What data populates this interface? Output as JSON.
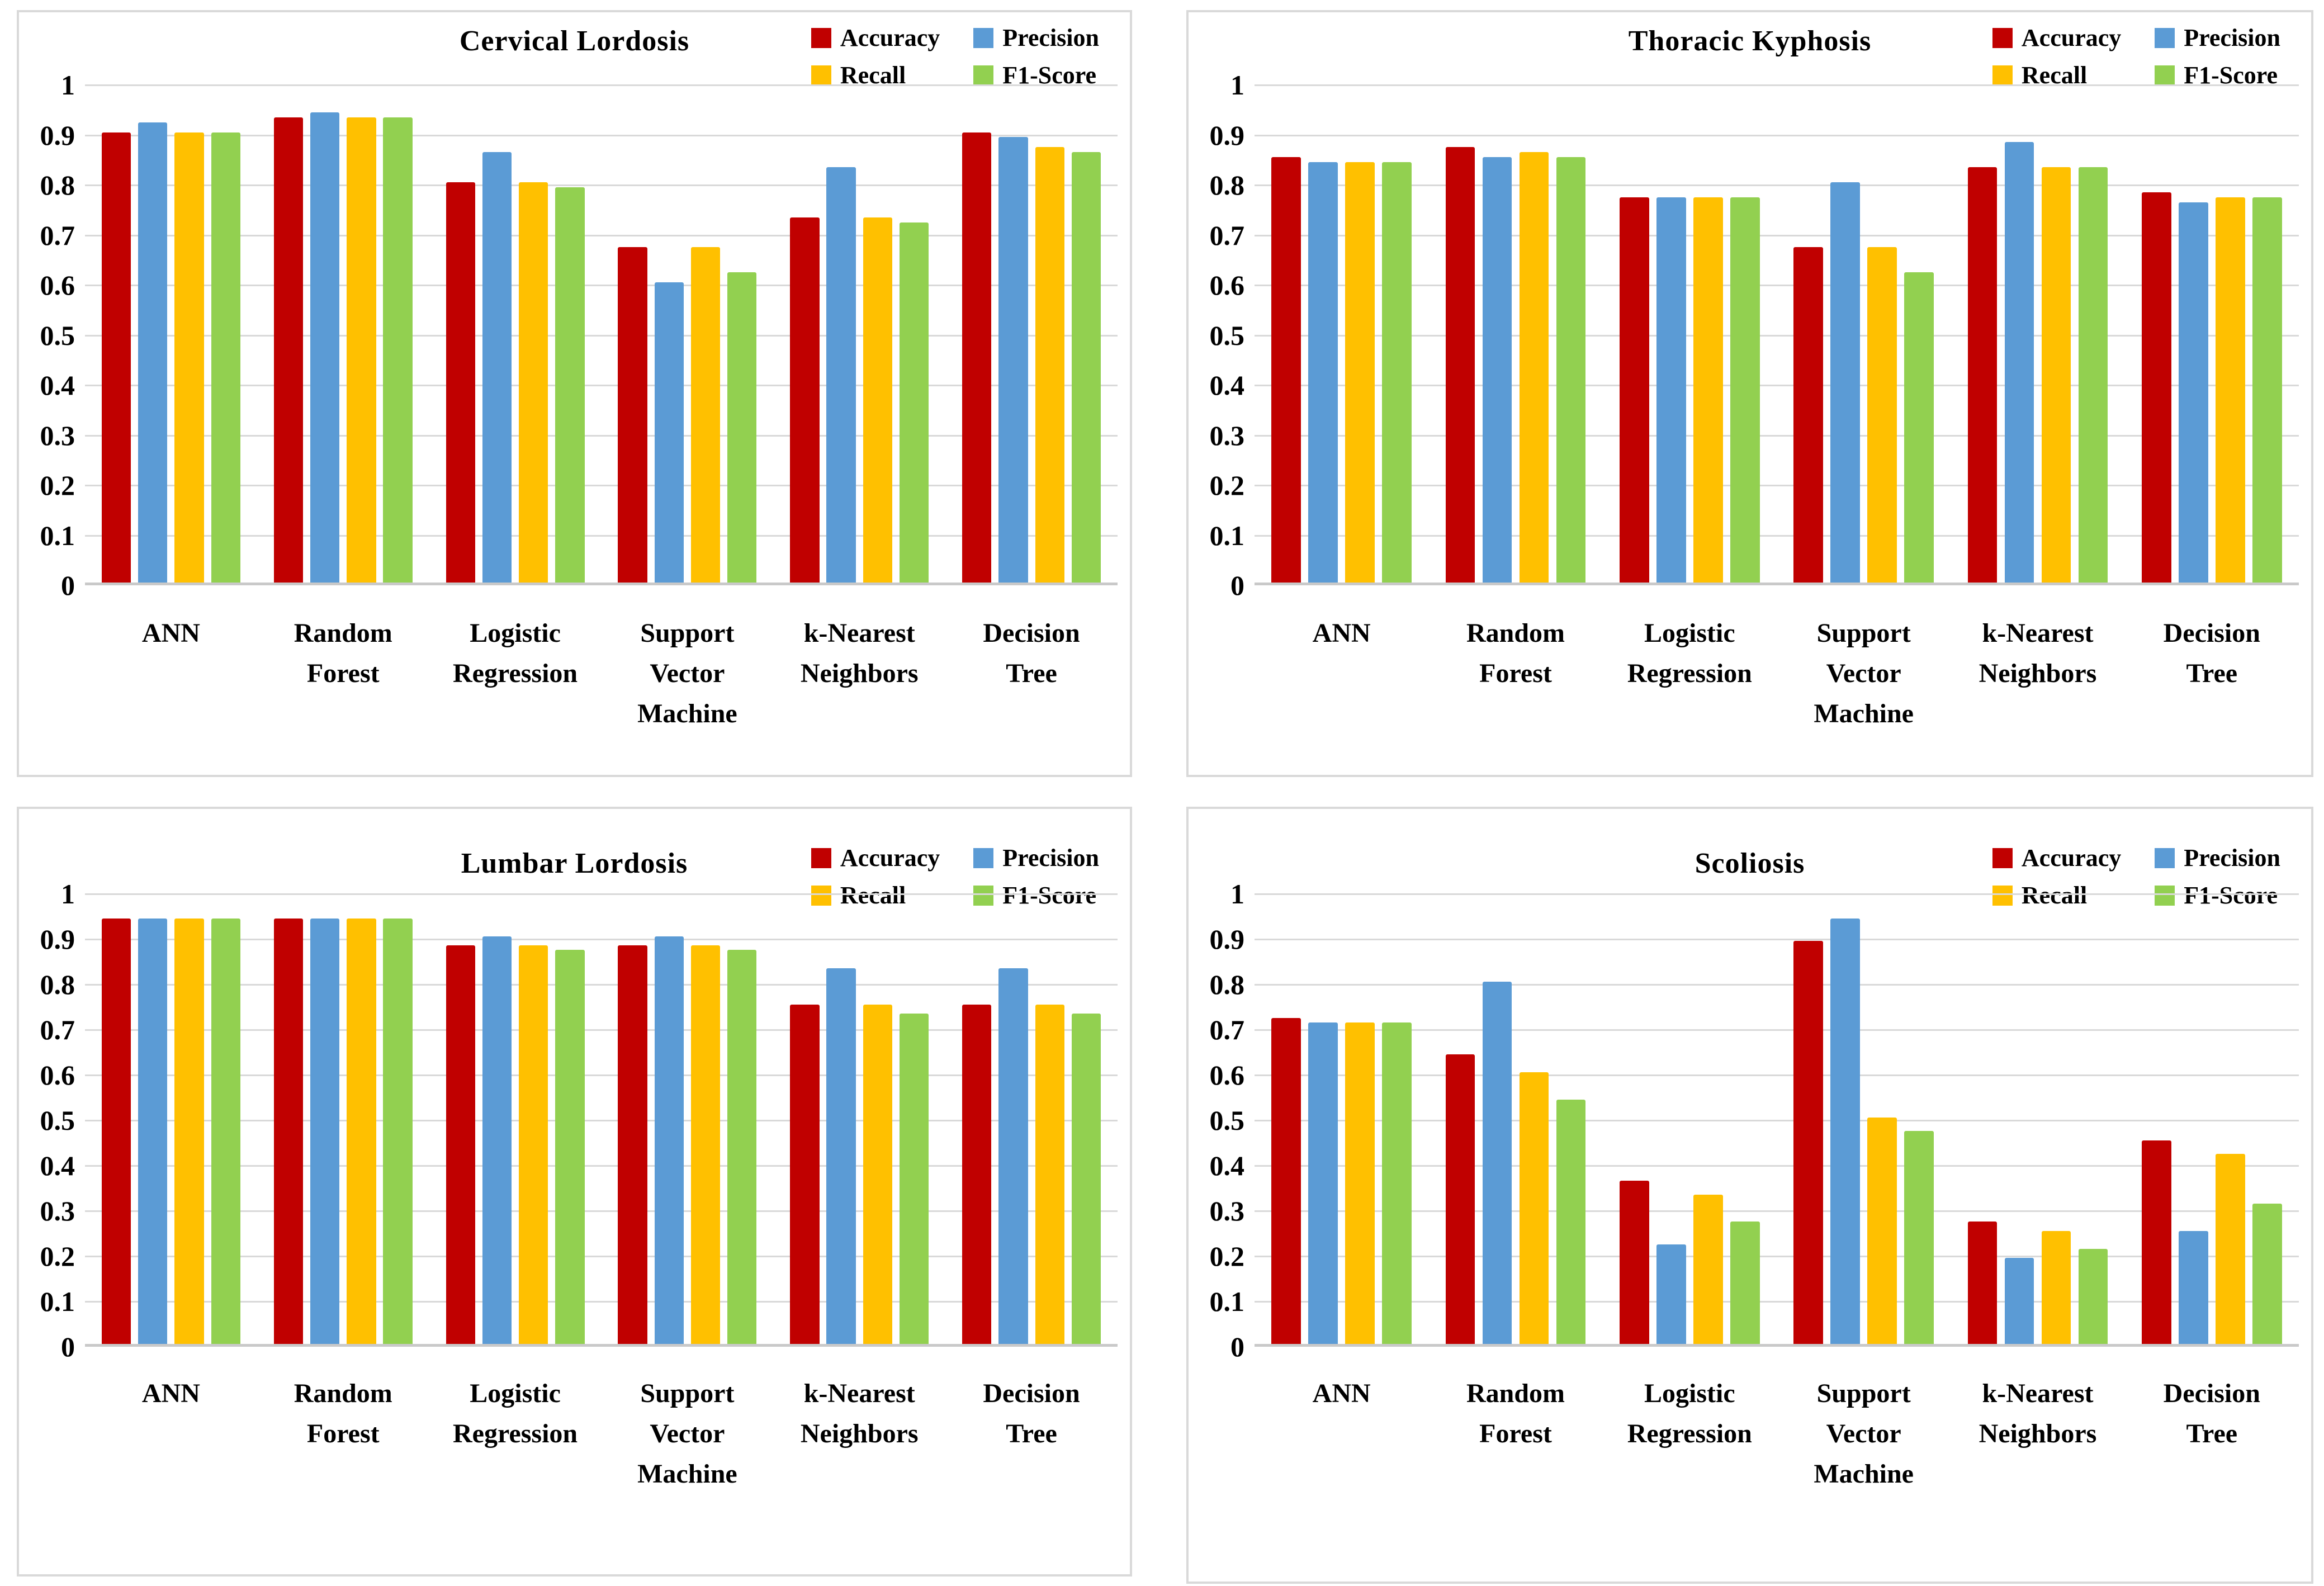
{
  "page": {
    "background": "#ffffff",
    "layout": "2x2-grid-of-bar-charts"
  },
  "colors": {
    "accuracy": "#C00000",
    "precision": "#5B9BD5",
    "recall": "#FFC000",
    "f1_score": "#92D050",
    "gridline": "#D9D9D9",
    "axis_line": "#C9C9C9",
    "panel_border": "#D9D9D9",
    "text": "#000000"
  },
  "legend": {
    "items": [
      {
        "label": "Accuracy",
        "color": "#C00000"
      },
      {
        "label": "Precision",
        "color": "#5B9BD5"
      },
      {
        "label": "Recall",
        "color": "#FFC000"
      },
      {
        "label": "F1-Score",
        "color": "#92D050"
      }
    ]
  },
  "y_axis": {
    "min": 0,
    "max": 1,
    "step": 0.1,
    "ticks": [
      "1",
      "0.9",
      "0.8",
      "0.7",
      "0.6",
      "0.5",
      "0.4",
      "0.3",
      "0.2",
      "0.1",
      "0"
    ]
  },
  "categories_lines": [
    [
      "ANN"
    ],
    [
      "Random",
      "Forest"
    ],
    [
      "Logistic",
      "Regression"
    ],
    [
      "Support",
      "Vector",
      "Machine"
    ],
    [
      "k-Nearest",
      "Neighbors"
    ],
    [
      "Decision",
      "Tree"
    ]
  ],
  "chart_data": [
    {
      "type": "bar",
      "title": "Cervical Lordosis",
      "panel": "top-left",
      "categories": [
        "ANN",
        "Random Forest",
        "Logistic Regression",
        "Support Vector Machine",
        "k-Nearest Neighbors",
        "Decision Tree"
      ],
      "series": [
        {
          "name": "Accuracy",
          "values": [
            0.9,
            0.93,
            0.8,
            0.67,
            0.73,
            0.9
          ]
        },
        {
          "name": "Precision",
          "values": [
            0.92,
            0.94,
            0.86,
            0.6,
            0.83,
            0.89
          ]
        },
        {
          "name": "Recall",
          "values": [
            0.9,
            0.93,
            0.8,
            0.67,
            0.73,
            0.87
          ]
        },
        {
          "name": "F1-Score",
          "values": [
            0.9,
            0.93,
            0.79,
            0.62,
            0.72,
            0.86
          ]
        }
      ],
      "xlabel": "",
      "ylabel": "",
      "ylim": [
        0,
        1
      ],
      "grid": true,
      "legend_position": "top-right"
    },
    {
      "type": "bar",
      "title": "Thoracic Kyphosis",
      "panel": "top-right",
      "categories": [
        "ANN",
        "Random Forest",
        "Logistic Regression",
        "Support Vector Machine",
        "k-Nearest Neighbors",
        "Decision Tree"
      ],
      "series": [
        {
          "name": "Accuracy",
          "values": [
            0.85,
            0.87,
            0.77,
            0.67,
            0.83,
            0.78
          ]
        },
        {
          "name": "Precision",
          "values": [
            0.84,
            0.85,
            0.77,
            0.8,
            0.88,
            0.76
          ]
        },
        {
          "name": "Recall",
          "values": [
            0.84,
            0.86,
            0.77,
            0.67,
            0.83,
            0.77
          ]
        },
        {
          "name": "F1-Score",
          "values": [
            0.84,
            0.85,
            0.77,
            0.62,
            0.83,
            0.77
          ]
        }
      ],
      "xlabel": "",
      "ylabel": "",
      "ylim": [
        0,
        1
      ],
      "grid": true,
      "legend_position": "top-right"
    },
    {
      "type": "bar",
      "title": "Lumbar Lordosis",
      "panel": "bottom-left",
      "categories": [
        "ANN",
        "Random Forest",
        "Logistic Regression",
        "Support Vector Machine",
        "k-Nearest Neighbors",
        "Decision Tree"
      ],
      "series": [
        {
          "name": "Accuracy",
          "values": [
            0.94,
            0.94,
            0.88,
            0.88,
            0.75,
            0.75
          ]
        },
        {
          "name": "Precision",
          "values": [
            0.94,
            0.94,
            0.9,
            0.9,
            0.83,
            0.83
          ]
        },
        {
          "name": "Recall",
          "values": [
            0.94,
            0.94,
            0.88,
            0.88,
            0.75,
            0.75
          ]
        },
        {
          "name": "F1-Score",
          "values": [
            0.94,
            0.94,
            0.87,
            0.87,
            0.73,
            0.73
          ]
        }
      ],
      "xlabel": "",
      "ylabel": "",
      "ylim": [
        0,
        1
      ],
      "grid": true,
      "legend_position": "top-right"
    },
    {
      "type": "bar",
      "title": "Scoliosis",
      "panel": "bottom-right",
      "categories": [
        "ANN",
        "Random Forest",
        "Logistic Regression",
        "Support Vector Machine",
        "k-Nearest Neighbors",
        "Decision Tree"
      ],
      "series": [
        {
          "name": "Accuracy",
          "values": [
            0.72,
            0.64,
            0.36,
            0.89,
            0.27,
            0.45
          ]
        },
        {
          "name": "Precision",
          "values": [
            0.71,
            0.8,
            0.22,
            0.94,
            0.19,
            0.25
          ]
        },
        {
          "name": "Recall",
          "values": [
            0.71,
            0.6,
            0.33,
            0.5,
            0.25,
            0.42
          ]
        },
        {
          "name": "F1-Score",
          "values": [
            0.71,
            0.54,
            0.27,
            0.47,
            0.21,
            0.31
          ]
        }
      ],
      "xlabel": "",
      "ylabel": "",
      "ylim": [
        0,
        1
      ],
      "grid": true,
      "legend_position": "top-right"
    }
  ]
}
